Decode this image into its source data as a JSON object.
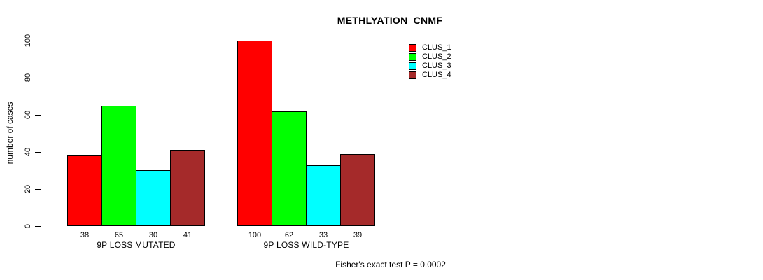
{
  "chart_data": {
    "type": "bar",
    "title": "METHLYATION_CNMF",
    "ylabel": "number of cases",
    "ylim": [
      0,
      100
    ],
    "yticks": [
      0,
      20,
      40,
      60,
      80,
      100
    ],
    "grid": false,
    "legend_position": "top-right",
    "series": [
      "CLUS_1",
      "CLUS_2",
      "CLUS_3",
      "CLUS_4"
    ],
    "series_colors": [
      "#FF0000",
      "#00FF00",
      "#00FFFF",
      "#A52A2A"
    ],
    "groups": [
      {
        "label": "9P LOSS MUTATED",
        "values": [
          38,
          65,
          30,
          41
        ]
      },
      {
        "label": "9P LOSS WILD-TYPE",
        "values": [
          100,
          62,
          33,
          39
        ]
      }
    ],
    "annotation": "Fisher's exact test P = 0.0002"
  }
}
